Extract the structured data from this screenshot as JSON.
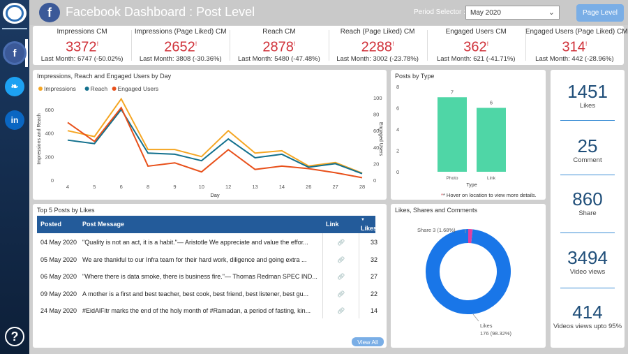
{
  "header": {
    "title": "Facebook Dashboard : Post Level",
    "period_label": "Period Selector :",
    "period_value": "May 2020",
    "page_level_button": "Page Level"
  },
  "kpis": [
    {
      "title": "Impressions CM",
      "value": "3372",
      "mark": "!",
      "sub": "Last Month: 6747 (-50.02%)"
    },
    {
      "title": "Impressions (Page Liked) CM",
      "value": "2652",
      "mark": "!",
      "sub": "Last Month: 3808 (-30.36%)"
    },
    {
      "title": "Reach CM",
      "value": "2878",
      "mark": "!",
      "sub": "Last Month: 5480 (-47.48%)"
    },
    {
      "title": "Reach (Page Liked) CM",
      "value": "2288",
      "mark": "!",
      "sub": "Last Month: 3002 (-23.78%)"
    },
    {
      "title": "Engaged Users CM",
      "value": "362",
      "mark": "!",
      "sub": "Last Month: 621 (-41.71%)"
    },
    {
      "title": "Engaged Users (Page Liked) CM",
      "value": "314",
      "mark": "!",
      "sub": "Last Month: 442 (-28.96%)"
    }
  ],
  "panels": {
    "line_title": "Impressions, Reach and Engaged Users by Day",
    "bar_title": "Posts by Type",
    "bar_note": "* Hover on location to view more details.",
    "table_title": "Top 5 Posts by Likes",
    "donut_title": "Likes, Shares and Comments"
  },
  "colors": {
    "impressions": "#f5a623",
    "reach": "#12708d",
    "engaged": "#e8501a",
    "bar": "#4fd6a6",
    "likes": "#1976e8",
    "share": "#e040a0"
  },
  "chart_data": [
    {
      "type": "line",
      "x": [
        4,
        5,
        6,
        8,
        9,
        10,
        12,
        13,
        14,
        26,
        27,
        28
      ],
      "xlabel": "Day",
      "ylabel": "Impressions and Reach",
      "y2label": "Engaged Users",
      "ylim": [
        0,
        700
      ],
      "y2lim": [
        0,
        100
      ],
      "yticks": [
        0,
        200,
        400,
        600
      ],
      "y2ticks": [
        0,
        20,
        40,
        60,
        80,
        100
      ],
      "legend": "top-left",
      "series": [
        {
          "name": "Impressions",
          "axis": "left",
          "values": [
            420,
            370,
            690,
            260,
            260,
            200,
            420,
            230,
            250,
            120,
            150,
            60
          ]
        },
        {
          "name": "Reach",
          "axis": "left",
          "values": [
            340,
            310,
            600,
            230,
            220,
            165,
            350,
            190,
            220,
            110,
            140,
            55
          ]
        },
        {
          "name": "Engaged Users",
          "axis": "right",
          "values": [
            70,
            47,
            88,
            17,
            21,
            10,
            37,
            13,
            17,
            14,
            9,
            3
          ]
        }
      ]
    },
    {
      "type": "bar",
      "categories": [
        "Photo",
        "Link"
      ],
      "values": [
        7,
        6
      ],
      "xlabel": "Type",
      "ylim": [
        0,
        8
      ],
      "yticks": [
        0,
        2,
        4,
        6,
        8
      ]
    },
    {
      "type": "pie",
      "labels": [
        "Likes",
        "Share"
      ],
      "values": [
        176,
        3
      ],
      "percent": [
        "98.32%",
        "1.68%"
      ],
      "likes_label": "Likes",
      "likes_value": "176 (98.32%)",
      "share_label": "Share 3 (1.68%)"
    }
  ],
  "table": {
    "headers": [
      "Posted",
      "Post Message",
      "Link",
      "Likes"
    ],
    "rows": [
      {
        "posted": "04 May 2020",
        "message": "\"Quality is not an act, it is a habit.\"— Aristotle  We appreciate and value the effor...",
        "likes": "33"
      },
      {
        "posted": "05 May 2020",
        "message": "We are thankful to our Infra team for their hard work, diligence and going extra ...",
        "likes": "32"
      },
      {
        "posted": "06 May 2020",
        "message": "\"Where there is data smoke, there is business fire.\"— Thomas Redman  SPEC IND...",
        "likes": "27"
      },
      {
        "posted": "09 May 2020",
        "message": "A mother is a first and best teacher, best cook, best friend, best listener, best gu...",
        "likes": "22"
      },
      {
        "posted": "24 May 2020",
        "message": "#EidAlFitr marks the end of the holy month of #Ramadan, a period of fasting, kin...",
        "likes": "14"
      }
    ],
    "view_all": "View All"
  },
  "stats": [
    {
      "value": "1451",
      "label": "Likes"
    },
    {
      "value": "25",
      "label": "Comment"
    },
    {
      "value": "860",
      "label": "Share"
    },
    {
      "value": "3494",
      "label": "Video views"
    },
    {
      "value": "414",
      "label": "Videos views upto 95%"
    }
  ],
  "icons": {
    "nav": [
      "dashboard-logo-icon",
      "facebook-icon",
      "twitter-icon",
      "linkedin-icon",
      "help-icon"
    ]
  }
}
